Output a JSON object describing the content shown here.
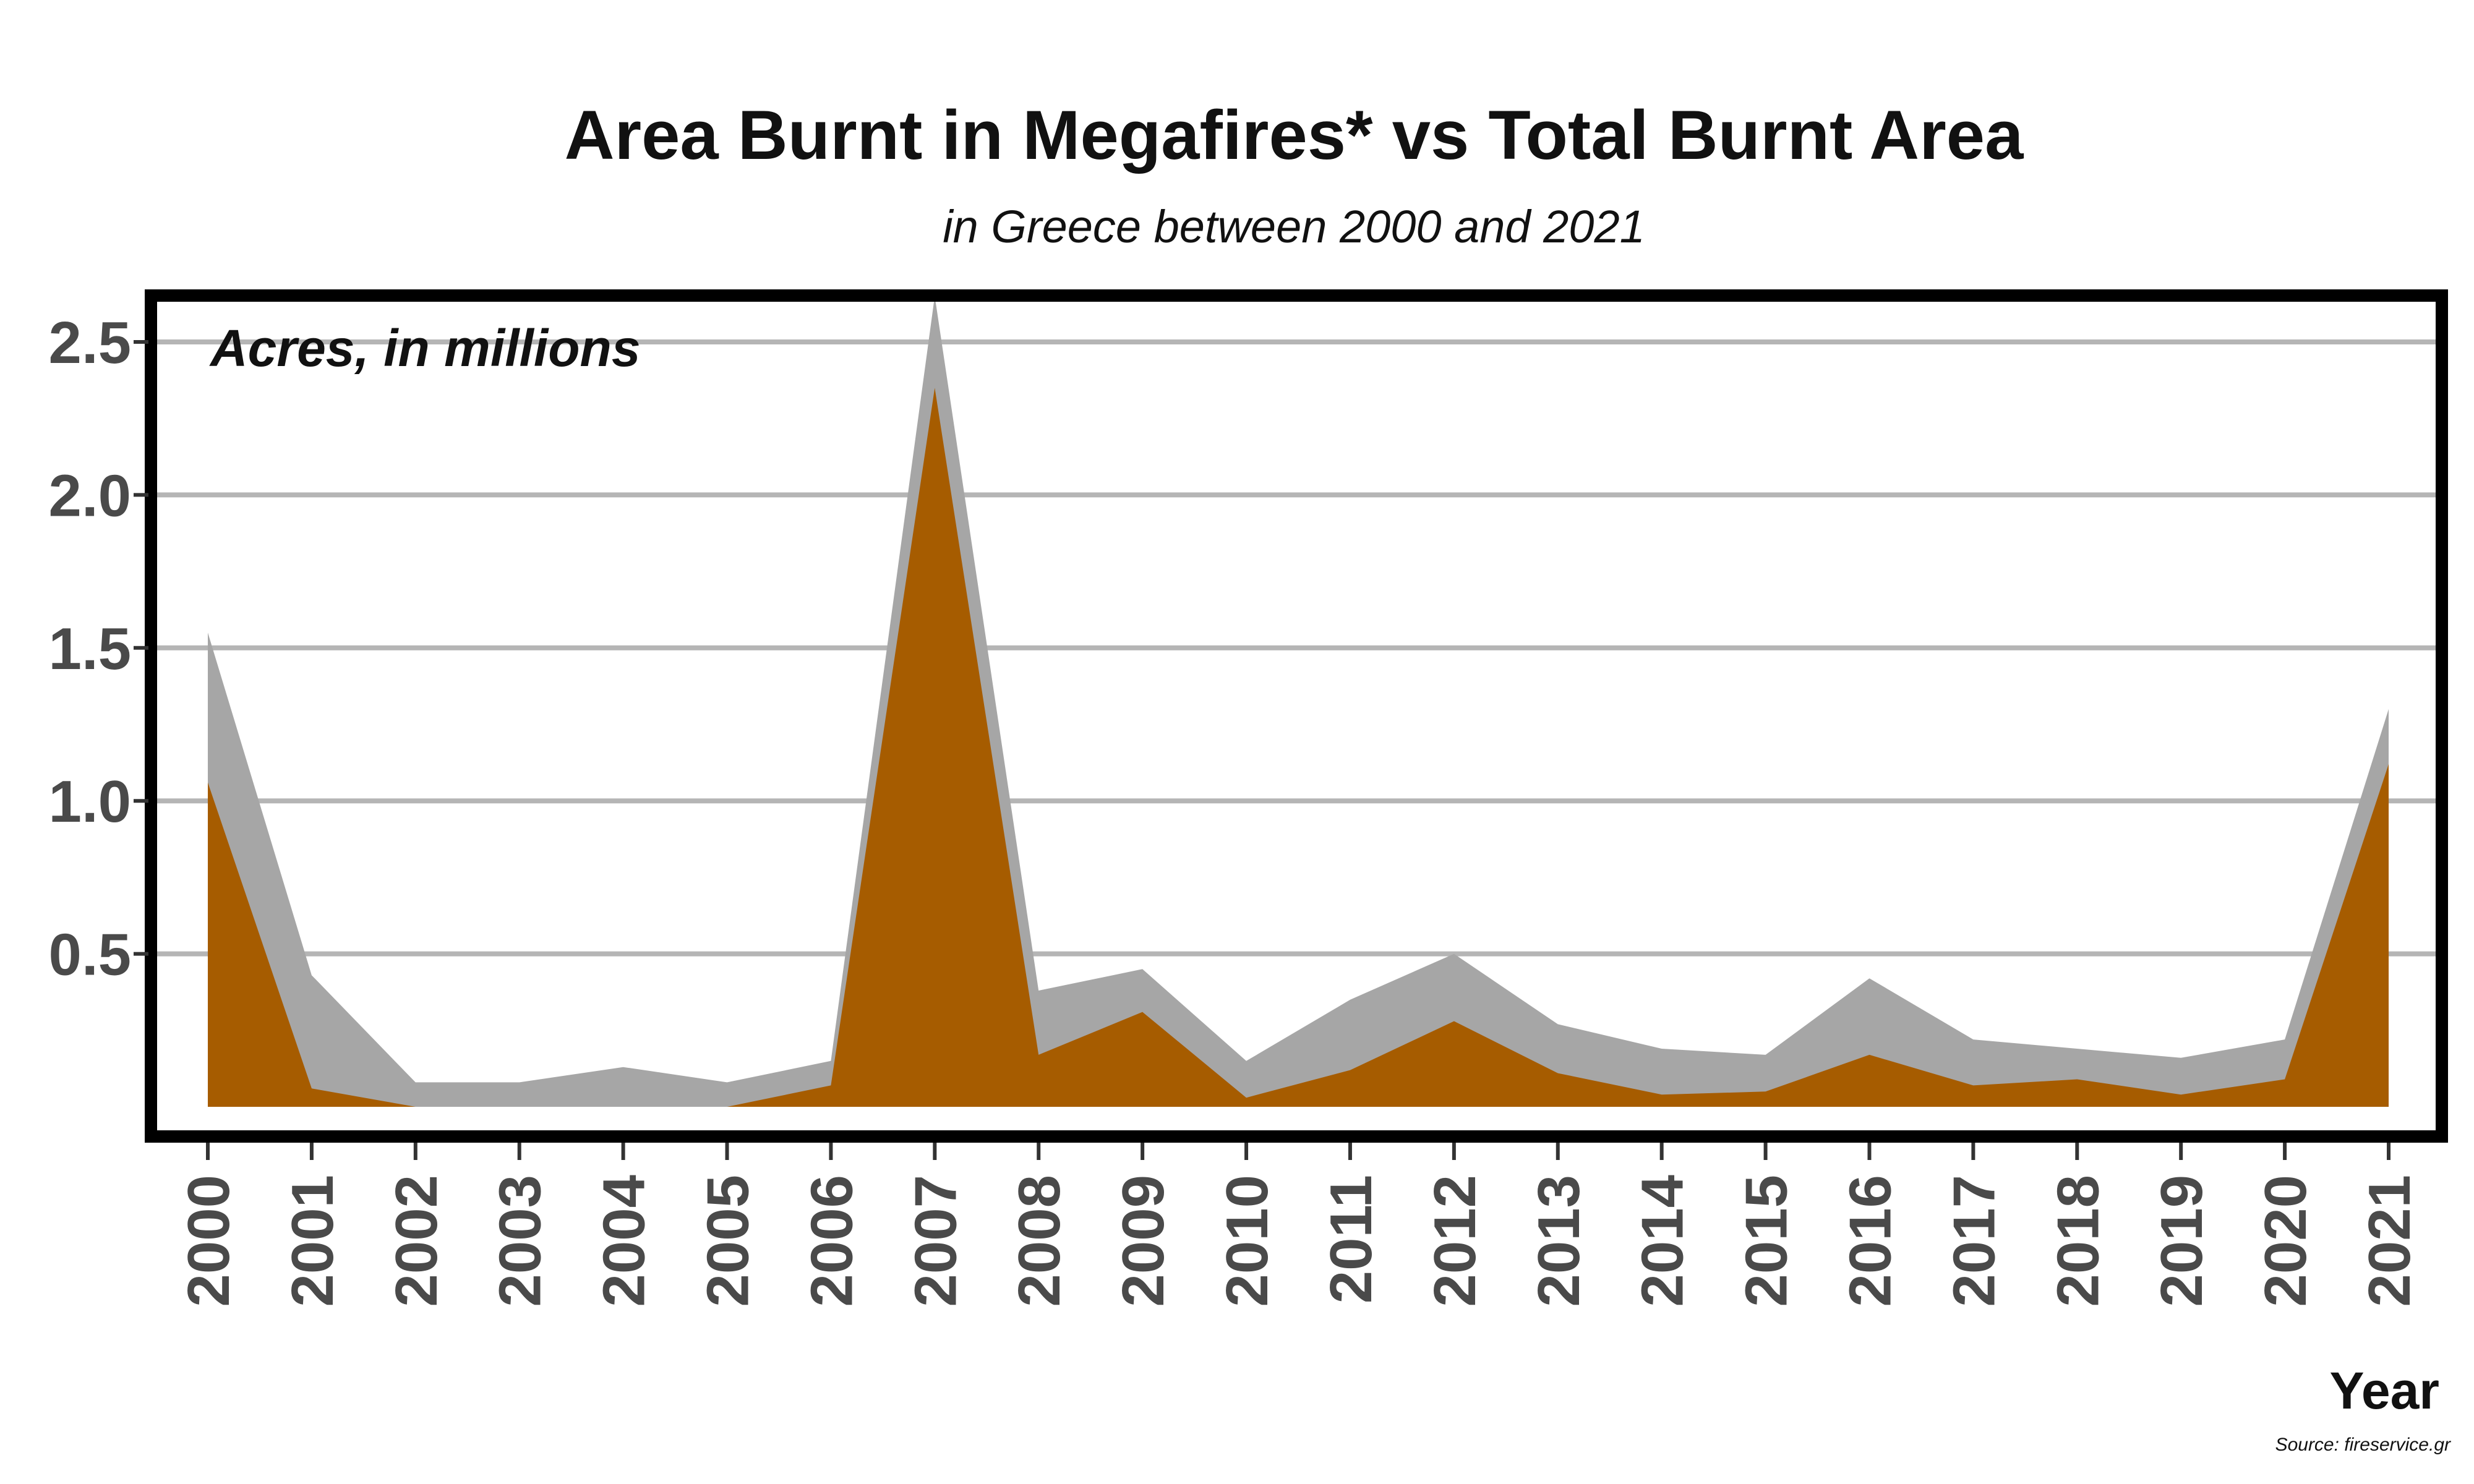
{
  "chart_data": {
    "type": "area",
    "title": "Area Burnt in Megafires* vs Total Burnt Area",
    "subtitle": "in Greece between 2000 and 2021",
    "ylabel": "Acres, in millions",
    "xlabel": "Year",
    "source": "Source: fireservice.gr",
    "x": [
      "2000",
      "2001",
      "2002",
      "2003",
      "2004",
      "2005",
      "2006",
      "2007",
      "2008",
      "2009",
      "2010",
      "2011",
      "2012",
      "2013",
      "2014",
      "2015",
      "2016",
      "2017",
      "2018",
      "2019",
      "2020",
      "2021"
    ],
    "y_ticks": [
      "0.5",
      "1.0",
      "1.5",
      "2.0",
      "2.5"
    ],
    "y_tick_values": [
      0.5,
      1.0,
      1.5,
      2.0,
      2.5
    ],
    "ylim": [
      0,
      2.6
    ],
    "grid": true,
    "series": [
      {
        "values": [
          1.55,
          0.43,
          0.08,
          0.08,
          0.13,
          0.08,
          0.15,
          2.65,
          0.38,
          0.45,
          0.15,
          0.35,
          0.5,
          0.27,
          0.19,
          0.17,
          0.42,
          0.22,
          0.19,
          0.16,
          0.22,
          1.3
        ],
        "color": "#a6a6a6"
      },
      {
        "values": [
          1.06,
          0.06,
          0.0,
          0.0,
          0.0,
          0.0,
          0.07,
          2.35,
          0.17,
          0.31,
          0.03,
          0.12,
          0.28,
          0.11,
          0.04,
          0.05,
          0.17,
          0.07,
          0.09,
          0.04,
          0.09,
          1.12
        ],
        "color": "#a65c00"
      }
    ],
    "colors": {
      "frame": "#000000",
      "grid": "#b5b5b5",
      "tick_text": "#4a4a4a"
    }
  }
}
